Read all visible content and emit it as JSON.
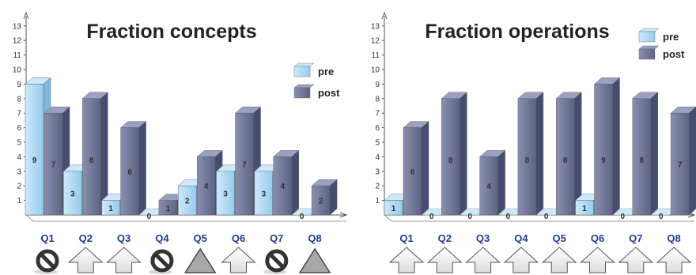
{
  "chart_data": [
    {
      "type": "bar",
      "title": "Fraction concepts",
      "categories": [
        "Q1",
        "Q2",
        "Q3",
        "Q4",
        "Q5",
        "Q6",
        "Q7",
        "Q8"
      ],
      "series": [
        {
          "name": "pre",
          "values": [
            9,
            3,
            1,
            0,
            2,
            3,
            3,
            0
          ]
        },
        {
          "name": "post",
          "values": [
            7,
            8,
            6,
            1,
            4,
            7,
            4,
            2
          ]
        }
      ],
      "yticks": [
        1,
        2,
        3,
        4,
        5,
        6,
        7,
        8,
        9,
        10,
        11,
        12,
        13
      ],
      "ylim": [
        0,
        13.5
      ],
      "xlabel": "",
      "ylabel": "",
      "grid": false,
      "legend": "right",
      "indicators": [
        "no-sign-icon",
        "up-arrow-icon",
        "up-arrow-icon",
        "no-sign-icon",
        "triangle-icon",
        "up-arrow-icon",
        "no-sign-icon",
        "triangle-icon"
      ]
    },
    {
      "type": "bar",
      "title": "Fraction operations",
      "categories": [
        "Q1",
        "Q2",
        "Q3",
        "Q4",
        "Q5",
        "Q6",
        "Q7",
        "Q8"
      ],
      "series": [
        {
          "name": "pre",
          "values": [
            1,
            0,
            0,
            0,
            0,
            1,
            0,
            0
          ]
        },
        {
          "name": "post",
          "values": [
            6,
            8,
            4,
            8,
            8,
            9,
            8,
            7
          ]
        }
      ],
      "yticks": [
        1,
        2,
        3,
        4,
        5,
        6,
        7,
        8,
        9,
        10,
        11,
        12,
        13
      ],
      "ylim": [
        0,
        13.5
      ],
      "xlabel": "",
      "ylabel": "",
      "grid": false,
      "legend": "top-right",
      "indicators": [
        "up-arrow-icon",
        "up-arrow-icon",
        "up-arrow-icon",
        "up-arrow-icon",
        "up-arrow-icon",
        "up-arrow-icon",
        "up-arrow-icon",
        "up-arrow-icon"
      ]
    }
  ],
  "colors": {
    "pre_front": "#a9d7f2",
    "pre_side": "#7fb9de",
    "pre_top": "#cde9fa",
    "post_front": "#6b7092",
    "post_side": "#474d70",
    "post_top": "#9aa0bf",
    "category_text": "#1f3b8f",
    "indicator_fill": "#a8a8a8"
  }
}
